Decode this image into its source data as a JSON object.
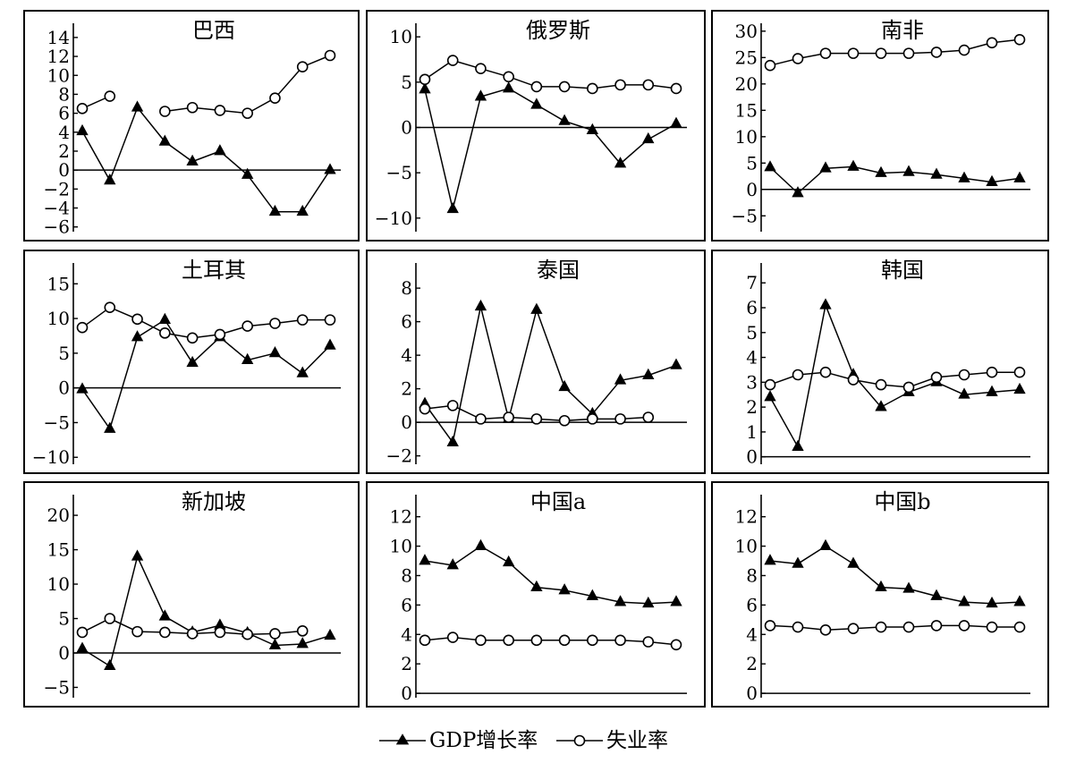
{
  "legend": {
    "gdp_label": "GDP增长率",
    "unemp_label": "失业率"
  },
  "chart_data": [
    {
      "type": "line",
      "title": "巴西",
      "ylim": [
        -6.5,
        15.5
      ],
      "yticks": [
        14,
        12,
        10,
        8,
        6,
        4,
        2,
        0,
        -2,
        -4,
        -6
      ],
      "series": [
        {
          "name": "GDP增长率",
          "marker": "triangle",
          "values": [
            4.1,
            -1.1,
            6.6,
            3.0,
            0.9,
            2.0,
            -0.5,
            -4.4,
            -4.4,
            0.0
          ]
        },
        {
          "name": "失业率",
          "marker": "circle",
          "values": [
            6.5,
            7.8,
            null,
            6.2,
            6.6,
            6.3,
            6.0,
            7.6,
            10.9,
            12.1
          ]
        }
      ]
    },
    {
      "type": "line",
      "title": "俄罗斯",
      "ylim": [
        -11.5,
        11.5
      ],
      "yticks": [
        10,
        5,
        0,
        -5,
        -10
      ],
      "series": [
        {
          "name": "GDP增长率",
          "marker": "triangle",
          "values": [
            4.2,
            -9.0,
            3.4,
            4.3,
            2.5,
            0.7,
            -0.3,
            -4.0,
            -1.3,
            0.4
          ]
        },
        {
          "name": "失业率",
          "marker": "circle",
          "values": [
            5.3,
            7.4,
            6.5,
            5.6,
            4.5,
            4.5,
            4.3,
            4.7,
            4.7,
            4.3
          ]
        }
      ]
    },
    {
      "type": "line",
      "title": "南非",
      "ylim": [
        -8,
        31.5
      ],
      "yticks": [
        30,
        25,
        20,
        15,
        10,
        5,
        0,
        -5
      ],
      "series": [
        {
          "name": "GDP增长率",
          "marker": "triangle",
          "values": [
            4.2,
            -0.7,
            4.0,
            4.3,
            3.1,
            3.3,
            2.8,
            2.1,
            1.4,
            2.1
          ]
        },
        {
          "name": "失业率",
          "marker": "circle",
          "values": [
            23.5,
            24.8,
            25.8,
            25.8,
            25.8,
            25.8,
            26.0,
            26.4,
            27.8,
            28.4
          ]
        }
      ]
    },
    {
      "type": "line",
      "title": "土耳其",
      "ylim": [
        -11,
        18
      ],
      "yticks": [
        15,
        10,
        5,
        0,
        -5,
        -10
      ],
      "series": [
        {
          "name": "GDP增长率",
          "marker": "triangle",
          "values": [
            -0.2,
            -5.9,
            7.3,
            9.8,
            3.6,
            7.3,
            4.0,
            5.0,
            2.1,
            6.1
          ]
        },
        {
          "name": "失业率",
          "marker": "circle",
          "values": [
            8.7,
            11.6,
            9.9,
            7.9,
            7.2,
            7.7,
            8.9,
            9.3,
            9.8,
            9.8
          ]
        }
      ]
    },
    {
      "type": "line",
      "title": "泰国",
      "ylim": [
        -2.5,
        9.5
      ],
      "yticks": [
        8,
        6,
        4,
        2,
        0,
        -2
      ],
      "series": [
        {
          "name": "GDP增长率",
          "marker": "triangle",
          "values": [
            1.1,
            -1.2,
            6.9,
            0.2,
            6.7,
            2.1,
            0.5,
            2.5,
            2.8,
            3.4
          ]
        },
        {
          "name": "失业率",
          "marker": "circle",
          "values": [
            0.8,
            1.0,
            0.2,
            0.3,
            0.2,
            0.1,
            0.2,
            0.2,
            0.3,
            null
          ]
        }
      ]
    },
    {
      "type": "line",
      "title": "韩国",
      "ylim": [
        -0.3,
        7.8
      ],
      "yticks": [
        7,
        6,
        5,
        4,
        3,
        2,
        1,
        0
      ],
      "series": [
        {
          "name": "GDP增长率",
          "marker": "triangle",
          "values": [
            2.4,
            0.4,
            6.1,
            3.3,
            2.0,
            2.6,
            3.0,
            2.5,
            2.6,
            2.7
          ]
        },
        {
          "name": "失业率",
          "marker": "circle",
          "values": [
            2.9,
            3.3,
            3.4,
            3.1,
            2.9,
            2.8,
            3.2,
            3.3,
            3.4,
            3.4
          ]
        }
      ]
    },
    {
      "type": "line",
      "title": "新加坡",
      "ylim": [
        -6.5,
        23
      ],
      "yticks": [
        20,
        15,
        10,
        5,
        0,
        -5
      ],
      "series": [
        {
          "name": "GDP增长率",
          "marker": "triangle",
          "values": [
            0.6,
            -1.9,
            14.0,
            5.3,
            3.0,
            4.0,
            2.9,
            1.1,
            1.3,
            2.5
          ]
        },
        {
          "name": "失业率",
          "marker": "circle",
          "values": [
            3.0,
            5.0,
            3.1,
            3.0,
            2.8,
            3.0,
            2.7,
            2.8,
            3.2,
            null
          ]
        }
      ]
    },
    {
      "type": "line",
      "title": "中国a",
      "ylim": [
        -0.3,
        13.5
      ],
      "yticks": [
        12,
        10,
        8,
        6,
        4,
        2,
        0
      ],
      "series": [
        {
          "name": "GDP增长率",
          "marker": "triangle",
          "values": [
            9.0,
            8.7,
            10.0,
            8.9,
            7.2,
            7.0,
            6.6,
            6.2,
            6.1,
            6.2
          ]
        },
        {
          "name": "失业率",
          "marker": "circle",
          "values": [
            3.6,
            3.8,
            3.6,
            3.6,
            3.6,
            3.6,
            3.6,
            3.6,
            3.5,
            3.3
          ]
        }
      ]
    },
    {
      "type": "line",
      "title": "中国b",
      "ylim": [
        -0.3,
        13.5
      ],
      "yticks": [
        12,
        10,
        8,
        6,
        4,
        2,
        0
      ],
      "series": [
        {
          "name": "GDP增长率",
          "marker": "triangle",
          "values": [
            9.0,
            8.8,
            10.0,
            8.8,
            7.2,
            7.1,
            6.6,
            6.2,
            6.1,
            6.2
          ]
        },
        {
          "name": "失业率",
          "marker": "circle",
          "values": [
            4.6,
            4.5,
            4.3,
            4.4,
            4.5,
            4.5,
            4.6,
            4.6,
            4.5,
            4.5
          ]
        }
      ]
    }
  ]
}
